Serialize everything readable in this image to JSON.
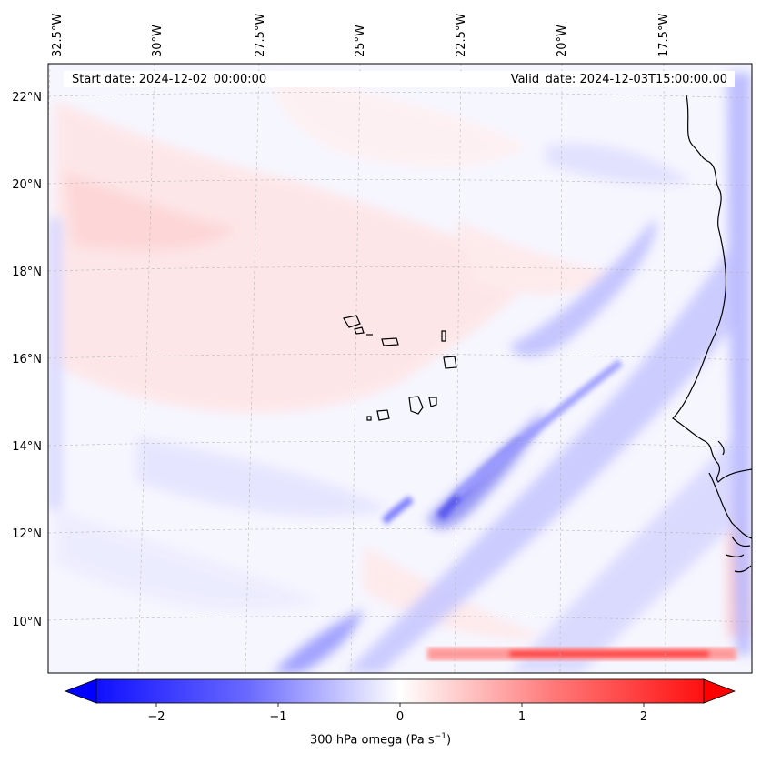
{
  "map": {
    "start_date": "Start date: 2024-12-02_00:00:00",
    "valid_date": "Valid_date: 2024-12-03T15:00:00.00",
    "lon_labels": [
      "32.5°W",
      "30°W",
      "27.5°W",
      "25°W",
      "22.5°W",
      "20°W",
      "17.5°W"
    ],
    "lat_labels": [
      "22°N",
      "20°N",
      "18°N",
      "16°N",
      "14°N",
      "12°N",
      "10°N"
    ],
    "colorbar_ticks": [
      "−2",
      "−1",
      "0",
      "1",
      "2"
    ],
    "colorbar_label": "300 hPa omega (Pa s",
    "colorbar_label_exp": "−1",
    "colors": {
      "negative": "#0000ff",
      "neutral": "#ffffff",
      "positive": "#ff0000",
      "coast": "#000000"
    }
  }
}
